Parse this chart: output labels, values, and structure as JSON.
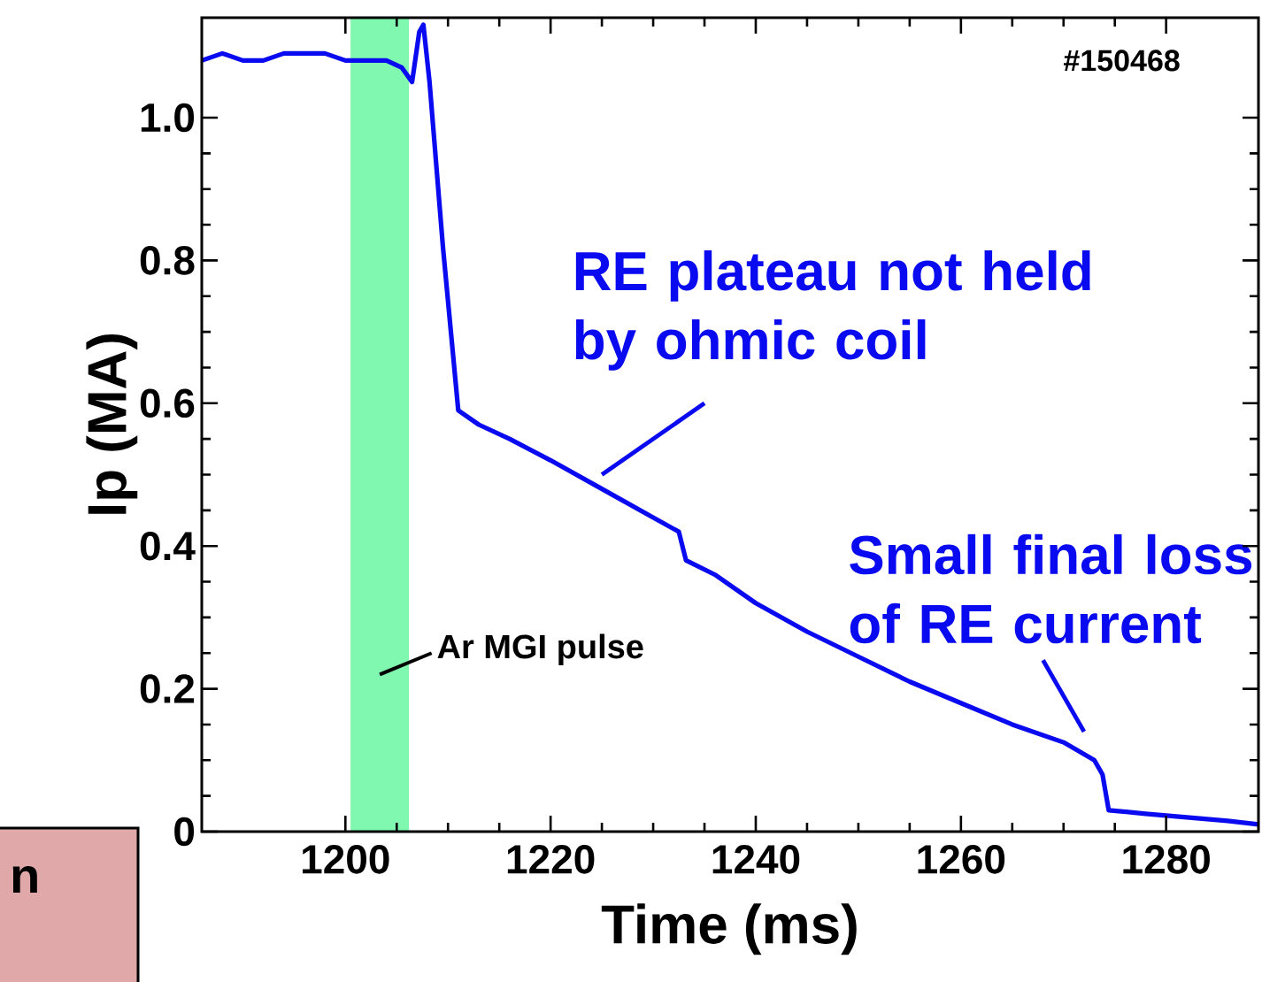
{
  "chart_data": {
    "type": "line",
    "xlabel": "Time (ms)",
    "ylabel": "Ip (MA)",
    "xlim": [
      1186,
      1289
    ],
    "ylim": [
      0,
      1.14
    ],
    "xticks": [
      1200,
      1220,
      1240,
      1260,
      1280
    ],
    "yticks": [
      0,
      0.2,
      0.4,
      0.6,
      0.8,
      {
        "value": 1,
        "label": "1.0"
      }
    ],
    "grid": false,
    "marker": "none",
    "line_style": "solid",
    "series": [
      {
        "color": "#0a0af0",
        "x": [
          1186,
          1188,
          1190,
          1192,
          1194,
          1196,
          1198,
          1200,
          1202,
          1204,
          1205.5,
          1206.5,
          1207.2,
          1207.6,
          1208.2,
          1209.5,
          1211,
          1213,
          1216,
          1220,
          1225,
          1230,
          1232.5,
          1233.2,
          1236,
          1240,
          1245,
          1250,
          1255,
          1260,
          1265,
          1270,
          1273,
          1273.8,
          1274.4,
          1278,
          1282,
          1286,
          1289
        ],
        "values": [
          1.08,
          1.09,
          1.08,
          1.08,
          1.09,
          1.09,
          1.09,
          1.08,
          1.08,
          1.08,
          1.07,
          1.05,
          1.12,
          1.13,
          1.05,
          0.82,
          0.59,
          0.57,
          0.55,
          0.52,
          0.48,
          0.44,
          0.42,
          0.38,
          0.36,
          0.32,
          0.28,
          0.245,
          0.21,
          0.18,
          0.15,
          0.125,
          0.1,
          0.08,
          0.03,
          0.025,
          0.02,
          0.015,
          0.01
        ]
      }
    ],
    "bands": [
      {
        "axis": "x",
        "from": 1200.5,
        "to": 1206.2,
        "label": "Ar MGI pulse",
        "color": "#80f8b0"
      }
    ],
    "annotations": [
      "#150468",
      {
        "text": "RE plateau not held by ohmic coil",
        "x": 1225,
        "y": 0.48
      },
      {
        "text": "Small final loss of RE current",
        "x": 1272,
        "y": 0.12
      },
      "n"
    ]
  }
}
